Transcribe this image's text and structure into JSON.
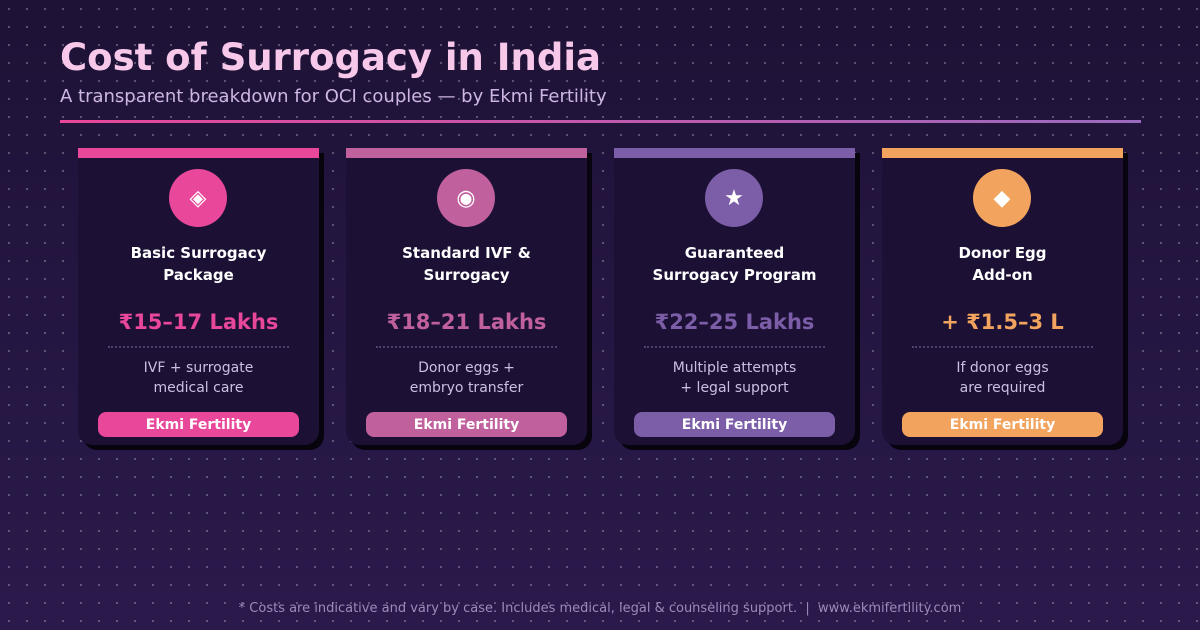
{
  "header": {
    "title": "Cost of Surrogacy in India",
    "subtitle": "A transparent breakdown for OCI couples — by Ekmi Fertility"
  },
  "cards": [
    {
      "icon": "◈",
      "title": [
        "Basic Surrogacy",
        "Package"
      ],
      "price": "₹15–17 Lakhs",
      "description": [
        "IVF + surrogate",
        "medical care"
      ],
      "badge": "Ekmi Fertility",
      "color": "#e8479a"
    },
    {
      "icon": "◉",
      "title": [
        "Standard IVF &",
        "Surrogacy"
      ],
      "price": "₹18–21 Lakhs",
      "description": [
        "Donor eggs +",
        "embryo transfer"
      ],
      "badge": "Ekmi Fertility",
      "color": "#c0619e"
    },
    {
      "icon": "★",
      "title": [
        "Guaranteed",
        "Surrogacy Program"
      ],
      "price": "₹22–25 Lakhs",
      "description": [
        "Multiple attempts",
        "+ legal support"
      ],
      "badge": "Ekmi Fertility",
      "color": "#7b5ea7"
    },
    {
      "icon": "◆",
      "title": [
        "Donor Egg",
        "Add-on"
      ],
      "price": "+ ₹1.5–3 L",
      "description": [
        "If donor eggs",
        "are required"
      ],
      "badge": "Ekmi Fertility",
      "color": "#f2a35e"
    }
  ],
  "footer": {
    "note": "* Costs are indicative and vary by case. Includes medical, legal & counseling support.  |  www.ekmifertility.com"
  }
}
